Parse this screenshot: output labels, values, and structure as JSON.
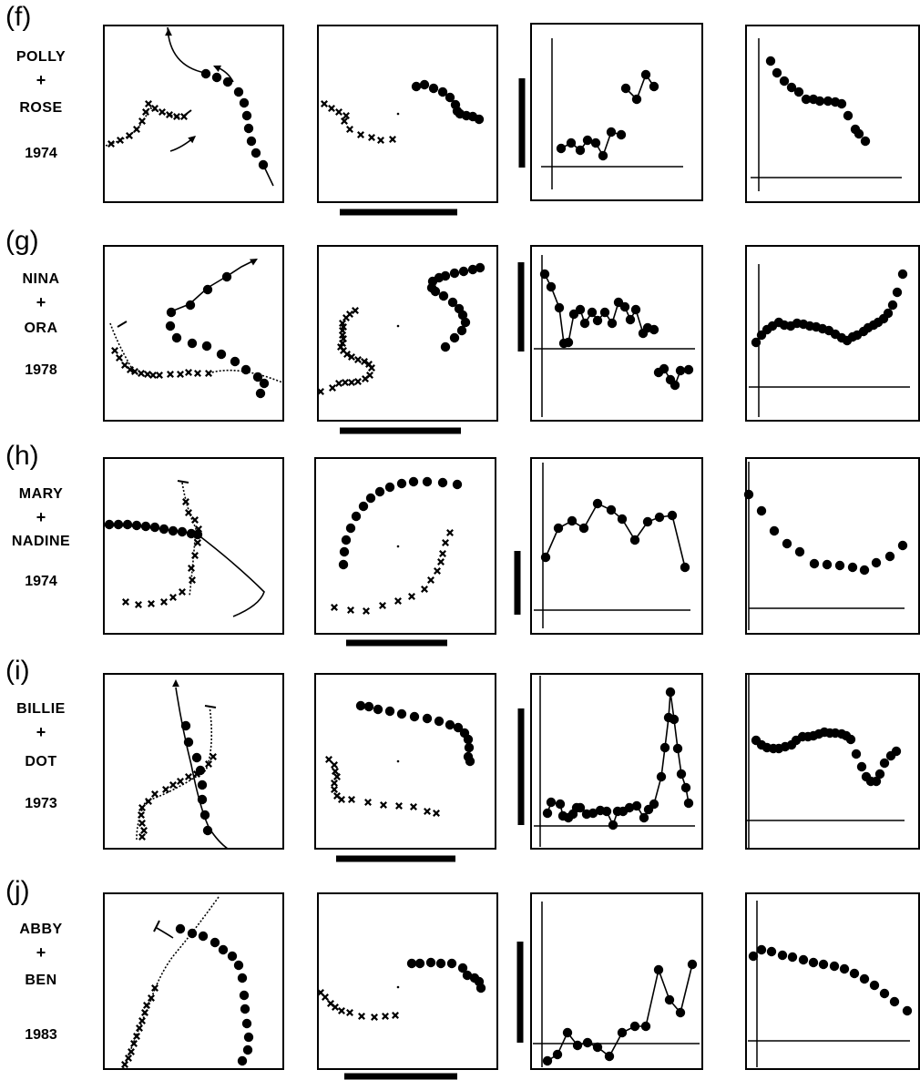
{
  "rows": [
    {
      "letter": "(f)",
      "name1": "POLLY",
      "plus": "+",
      "name2": "ROSE",
      "year": "1974"
    },
    {
      "letter": "(g)",
      "name1": "NINA",
      "plus": "+",
      "name2": "ORA",
      "year": "1978"
    },
    {
      "letter": "(h)",
      "name1": "MARY",
      "plus": "+",
      "name2": "NADINE",
      "year": "1974"
    },
    {
      "letter": "(i)",
      "name1": "BILLIE",
      "plus": "+",
      "name2": "DOT",
      "year": "1973"
    },
    {
      "letter": "(j)",
      "name1": "ABBY",
      "plus": "+",
      "name2": "BEN",
      "year": "1983"
    }
  ],
  "colors": {
    "ink": "#000000",
    "background": "#ffffff"
  },
  "marker_names": [
    "filled-circle",
    "cross-x"
  ]
}
